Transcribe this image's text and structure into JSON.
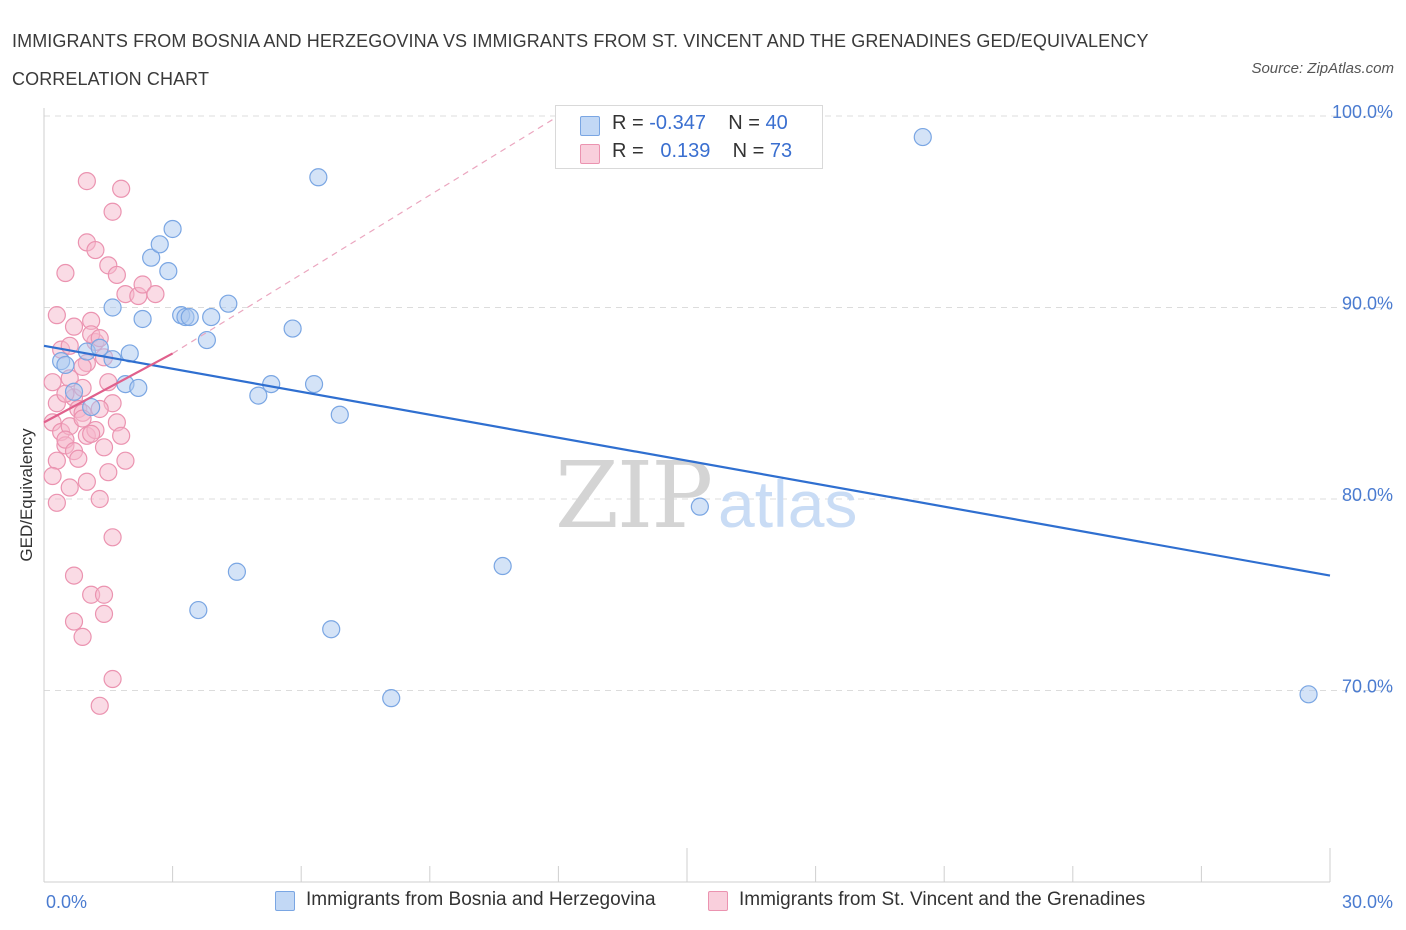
{
  "header": {
    "title": "IMMIGRANTS FROM BOSNIA AND HERZEGOVINA VS IMMIGRANTS FROM ST. VINCENT AND THE GRENADINES GED/EQUIVALENCY CORRELATION CHART",
    "source": "Source: ZipAtlas.com"
  },
  "watermark": {
    "zip": "ZIP",
    "atlas": "atlas"
  },
  "legend": {
    "r_label": "R =",
    "n_label": "N =",
    "series1": {
      "r": "-0.347",
      "n": "40"
    },
    "series2": {
      "r": "0.139",
      "n": "73"
    }
  },
  "colors": {
    "blue_fill": "#a9c8f0",
    "blue_stroke": "#7aa6e3",
    "blue_line": "#2f6fd0",
    "pink_fill": "#f5b8cb",
    "pink_stroke": "#eb93b0",
    "pink_line": "#e0608c",
    "grid": "#dcdcdc",
    "axis_text": "#4a7bd0"
  },
  "chart_data": {
    "type": "scatter",
    "title": "IMMIGRANTS FROM BOSNIA AND HERZEGOVINA VS IMMIGRANTS FROM ST. VINCENT AND THE GRENADINES GED/EQUIVALENCY CORRELATION CHART",
    "xlabel": "",
    "ylabel": "GED/Equivalency",
    "xlim": [
      0,
      30
    ],
    "ylim": [
      60,
      100
    ],
    "x_tick_labels": [
      "0.0%",
      "30.0%"
    ],
    "y_ticks": [
      70,
      80,
      90,
      100
    ],
    "y_tick_labels": [
      "70.0%",
      "80.0%",
      "90.0%",
      "100.0%"
    ],
    "grid": true,
    "series": [
      {
        "name": "Immigrants from Bosnia and Herzegovina",
        "color": "#a9c8f0",
        "r": -0.347,
        "n": 40,
        "trend": {
          "x": [
            0.0,
            30.0
          ],
          "y": [
            88.0,
            76.0
          ]
        },
        "points": [
          [
            0.4,
            87.2
          ],
          [
            0.7,
            85.6
          ],
          [
            0.5,
            87.0
          ],
          [
            1.1,
            84.8
          ],
          [
            1.0,
            87.7
          ],
          [
            1.3,
            87.9
          ],
          [
            1.6,
            87.3
          ],
          [
            1.6,
            90.0
          ],
          [
            2.0,
            87.6
          ],
          [
            1.9,
            86.0
          ],
          [
            2.2,
            85.8
          ],
          [
            2.3,
            89.4
          ],
          [
            2.5,
            92.6
          ],
          [
            2.7,
            93.3
          ],
          [
            2.9,
            91.9
          ],
          [
            3.0,
            94.1
          ],
          [
            3.2,
            89.6
          ],
          [
            3.3,
            89.5
          ],
          [
            3.4,
            89.5
          ],
          [
            3.8,
            88.3
          ],
          [
            3.9,
            89.5
          ],
          [
            4.3,
            90.2
          ],
          [
            5.0,
            85.4
          ],
          [
            5.3,
            86.0
          ],
          [
            5.8,
            88.9
          ],
          [
            6.3,
            86.0
          ],
          [
            6.4,
            96.8
          ],
          [
            6.9,
            84.4
          ],
          [
            4.5,
            76.2
          ],
          [
            3.6,
            74.2
          ],
          [
            6.7,
            73.2
          ],
          [
            8.1,
            69.6
          ],
          [
            10.7,
            76.5
          ],
          [
            15.3,
            79.6
          ],
          [
            20.5,
            98.9
          ],
          [
            29.5,
            69.8
          ]
        ]
      },
      {
        "name": "Immigrants from St. Vincent and the Grenadines",
        "color": "#f5b8cb",
        "r": 0.139,
        "n": 73,
        "trend": {
          "x": [
            0.0,
            3.0
          ],
          "y": [
            84.0,
            87.6
          ]
        },
        "trend_extension": {
          "x": [
            3.0,
            12.0
          ],
          "y": [
            87.6,
            100.0
          ]
        },
        "points": [
          [
            0.3,
            89.6
          ],
          [
            0.4,
            87.8
          ],
          [
            0.2,
            86.1
          ],
          [
            0.3,
            85.0
          ],
          [
            0.2,
            84.0
          ],
          [
            0.4,
            83.5
          ],
          [
            0.5,
            82.8
          ],
          [
            0.3,
            82.0
          ],
          [
            0.2,
            81.2
          ],
          [
            0.3,
            79.8
          ],
          [
            0.6,
            86.3
          ],
          [
            0.7,
            85.3
          ],
          [
            0.8,
            84.7
          ],
          [
            0.6,
            83.8
          ],
          [
            0.5,
            83.1
          ],
          [
            0.7,
            82.5
          ],
          [
            0.9,
            85.8
          ],
          [
            0.9,
            84.5
          ],
          [
            1.0,
            83.3
          ],
          [
            0.8,
            82.1
          ],
          [
            1.1,
            89.3
          ],
          [
            1.2,
            88.2
          ],
          [
            1.0,
            87.1
          ],
          [
            0.9,
            86.9
          ],
          [
            1.1,
            88.6
          ],
          [
            1.3,
            88.4
          ],
          [
            1.4,
            87.4
          ],
          [
            1.5,
            86.1
          ],
          [
            1.6,
            85.0
          ],
          [
            1.3,
            84.7
          ],
          [
            1.2,
            83.6
          ],
          [
            1.4,
            82.7
          ],
          [
            1.7,
            84.0
          ],
          [
            1.5,
            81.4
          ],
          [
            1.3,
            80.0
          ],
          [
            1.8,
            83.3
          ],
          [
            1.0,
            93.4
          ],
          [
            1.2,
            93.0
          ],
          [
            1.5,
            92.2
          ],
          [
            0.5,
            91.8
          ],
          [
            1.6,
            95.0
          ],
          [
            1.8,
            96.2
          ],
          [
            1.0,
            96.6
          ],
          [
            1.7,
            91.7
          ],
          [
            1.9,
            90.7
          ],
          [
            2.2,
            90.6
          ],
          [
            2.3,
            91.2
          ],
          [
            2.6,
            90.7
          ],
          [
            0.7,
            89.0
          ],
          [
            0.6,
            88.0
          ],
          [
            1.6,
            78.0
          ],
          [
            0.7,
            76.0
          ],
          [
            1.1,
            75.0
          ],
          [
            1.4,
            75.0
          ],
          [
            1.4,
            74.0
          ],
          [
            0.7,
            73.6
          ],
          [
            0.9,
            72.8
          ],
          [
            1.6,
            70.6
          ],
          [
            1.3,
            69.2
          ],
          [
            0.5,
            85.5
          ],
          [
            0.9,
            84.2
          ],
          [
            1.0,
            80.9
          ],
          [
            0.6,
            80.6
          ],
          [
            1.9,
            82.0
          ],
          [
            1.1,
            83.4
          ]
        ]
      }
    ]
  }
}
